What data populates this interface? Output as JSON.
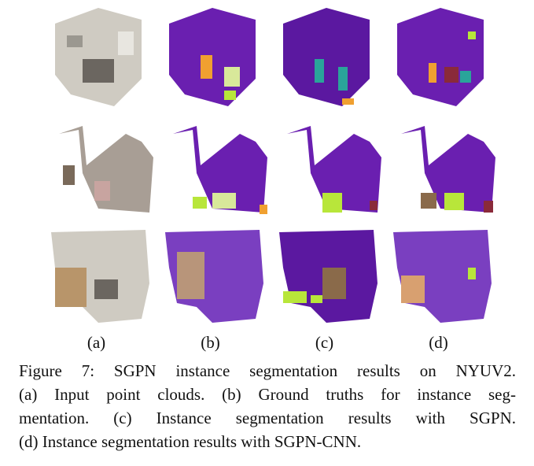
{
  "figure": {
    "column_labels": [
      "(a)",
      "(b)",
      "(c)",
      "(d)"
    ],
    "caption_lines": [
      "Figure 7: SGPN instance segmentation results on NYUV2.",
      "(a) Input point clouds. (b) Ground truths for instance seg-",
      "mentation. (c) Instance segmentation results with SGPN.",
      "(d) Instance segmentation results with SGPN-CNN."
    ],
    "colors": {
      "purple": "#6a1fb0",
      "orange": "#f0a030",
      "lime": "#b8e63a",
      "teal": "#2aa49a",
      "maroon": "#8a2a3a",
      "brown": "#8a6a4a",
      "rgb_gray": "#b9b3aa"
    }
  }
}
